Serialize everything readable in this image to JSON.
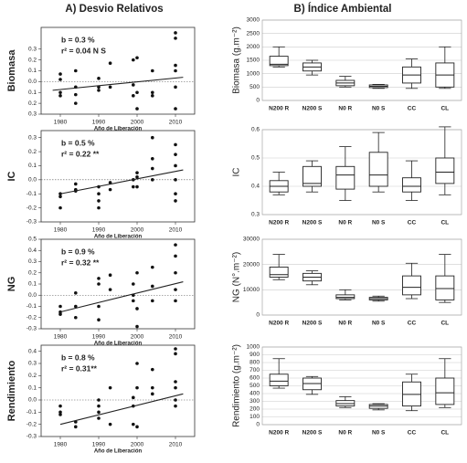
{
  "panel_titles": [
    "A)  Desvio Relativos",
    "B)  Índice Ambiental"
  ],
  "chart_data": [
    {
      "type": "scatter",
      "y_label": "Biomasa",
      "x_label": "Año de Liberación",
      "annotations": [
        "b  = 0.3 %",
        "r² =  0.04 N S"
      ],
      "xlim": [
        1975,
        2015
      ],
      "xticks": [
        1980,
        1990,
        2000,
        2010
      ],
      "ylim": [
        -0.3,
        0.5
      ],
      "yticks": [
        {
          "value": -0.3,
          "label": "0.3"
        },
        {
          "value": -0.2,
          "label": "0.2"
        },
        {
          "value": -0.1,
          "label": "0.1"
        },
        {
          "value": 0,
          "label": "0.0"
        },
        0.1,
        0.2,
        0.3
      ],
      "x": [
        1980,
        1980,
        1980,
        1980,
        1984,
        1984,
        1984,
        1984,
        1990,
        1990,
        1990,
        1993,
        1993,
        1999,
        1999,
        1999,
        2000,
        2000,
        2000,
        2004,
        2004,
        2004,
        2010,
        2010,
        2010,
        2010,
        2010,
        2010
      ],
      "values": [
        0.07,
        0.02,
        -0.1,
        -0.13,
        0.1,
        -0.05,
        -0.12,
        -0.2,
        0.03,
        -0.05,
        -0.08,
        0.17,
        -0.05,
        0.2,
        -0.03,
        -0.13,
        0.22,
        -0.1,
        -0.25,
        0.1,
        -0.1,
        -0.13,
        0.45,
        0.4,
        0.15,
        0.1,
        -0.05,
        -0.25
      ],
      "fit": {
        "x": [
          1978,
          2012
        ],
        "values": [
          -0.08,
          0.04
        ]
      }
    },
    {
      "type": "scatter",
      "y_label": "IC",
      "x_label": "Año de Liberación",
      "annotations": [
        "b = 0.5 %",
        "r² = 0.22 **"
      ],
      "xlim": [
        1975,
        2015
      ],
      "xticks": [
        1980,
        1990,
        2000,
        2010
      ],
      "ylim": [
        -0.3,
        0.35
      ],
      "yticks": [
        -0.3,
        -0.2,
        -0.1,
        {
          "value": 0,
          "label": "0.0"
        },
        0.1,
        0.2,
        0.3
      ],
      "x": [
        1980,
        1980,
        1980,
        1984,
        1984,
        1984,
        1990,
        1990,
        1990,
        1990,
        1993,
        1993,
        1999,
        1999,
        2000,
        2000,
        2000,
        2004,
        2004,
        2004,
        2004,
        2010,
        2010,
        2010,
        2010,
        2010,
        2010
      ],
      "values": [
        -0.1,
        -0.12,
        -0.2,
        -0.07,
        -0.08,
        -0.03,
        -0.05,
        -0.1,
        -0.15,
        -0.2,
        -0.07,
        -0.02,
        0,
        -0.05,
        0.02,
        0.05,
        -0.05,
        0.08,
        0.15,
        0.3,
        0,
        0.25,
        0.18,
        0.1,
        0,
        -0.1,
        -0.15
      ],
      "fit": {
        "x": [
          1980,
          2012
        ],
        "values": [
          -0.1,
          0.07
        ]
      }
    },
    {
      "type": "scatter",
      "y_label": "NG",
      "x_label": "Año de Liberación",
      "annotations": [
        "b = 0.9 %",
        "r² = 0.32 **"
      ],
      "xlim": [
        1975,
        2015
      ],
      "xticks": [
        1980,
        1990,
        2000,
        2010
      ],
      "ylim": [
        -0.3,
        0.5
      ],
      "yticks": [
        -0.3,
        -0.2,
        -0.1,
        {
          "value": 0,
          "label": "0.0"
        },
        0.1,
        0.2,
        0.3,
        0.4,
        0.5
      ],
      "x": [
        1980,
        1980,
        1980,
        1984,
        1984,
        1984,
        1990,
        1990,
        1990,
        1990,
        1993,
        1993,
        1999,
        1999,
        1999,
        2000,
        2000,
        2000,
        2004,
        2004,
        2004,
        2010,
        2010,
        2010,
        2010,
        2010
      ],
      "values": [
        -0.1,
        -0.15,
        -0.17,
        0.02,
        -0.1,
        -0.2,
        0.15,
        0.1,
        -0.1,
        -0.22,
        0.18,
        0.05,
        0.1,
        0,
        -0.05,
        0.2,
        -0.12,
        -0.28,
        0.25,
        0.08,
        -0.05,
        0.45,
        0.35,
        0.2,
        0.05,
        -0.05
      ],
      "fit": {
        "x": [
          1980,
          2012
        ],
        "values": [
          -0.15,
          0.12
        ]
      }
    },
    {
      "type": "scatter",
      "y_label": "Rendimiento",
      "x_label": "Año de Liberación",
      "annotations": [
        "b = 0.8 %",
        "r² = 0.31**"
      ],
      "xlim": [
        1975,
        2015
      ],
      "xticks": [
        1980,
        1990,
        2000,
        2010
      ],
      "ylim": [
        -0.3,
        0.45
      ],
      "yticks": [
        -0.3,
        -0.2,
        -0.1,
        {
          "value": 0,
          "label": "0.0"
        },
        0.1,
        0.2,
        0.3,
        0.4
      ],
      "x": [
        1980,
        1980,
        1980,
        1984,
        1984,
        1990,
        1990,
        1990,
        1990,
        1993,
        1993,
        1999,
        1999,
        1999,
        2000,
        2000,
        2000,
        2004,
        2004,
        2004,
        2010,
        2010,
        2010,
        2010,
        2010,
        2010
      ],
      "values": [
        -0.05,
        -0.1,
        -0.12,
        -0.18,
        -0.22,
        0,
        -0.05,
        -0.1,
        -0.15,
        -0.2,
        0.1,
        0.02,
        -0.05,
        -0.2,
        0.3,
        0.1,
        -0.22,
        0.25,
        0.1,
        0.05,
        0.42,
        0.38,
        0.15,
        0.1,
        0,
        -0.05
      ],
      "fit": {
        "x": [
          1980,
          2012
        ],
        "values": [
          -0.2,
          0.05
        ]
      }
    },
    {
      "type": "box",
      "y_label": "Biomasa (g.m⁻²)",
      "categories": [
        "N200 R",
        "N200 S",
        "N0 R",
        "N0 S",
        "CC",
        "CL"
      ],
      "ylim": [
        0,
        3000
      ],
      "yticks": [
        0,
        500,
        1000,
        1500,
        2000,
        2500,
        3000
      ],
      "grid": true,
      "min": [
        1250,
        950,
        500,
        450,
        450,
        450
      ],
      "q1": [
        1300,
        1100,
        550,
        480,
        650,
        500
      ],
      "median": [
        1350,
        1250,
        650,
        530,
        950,
        950
      ],
      "q3": [
        1650,
        1400,
        750,
        580,
        1250,
        1400
      ],
      "max": [
        2000,
        1500,
        900,
        600,
        1550,
        2000
      ]
    },
    {
      "type": "box",
      "y_label": "IC",
      "categories": [
        "N200 R",
        "N200 S",
        "N0 R",
        "N0 S",
        "CC",
        "CL"
      ],
      "ylim": [
        0.3,
        0.6
      ],
      "yticks": [
        0.3,
        0.4,
        0.5,
        0.6
      ],
      "grid": true,
      "min": [
        0.37,
        0.38,
        0.35,
        0.38,
        0.35,
        0.37
      ],
      "q1": [
        0.38,
        0.4,
        0.39,
        0.4,
        0.38,
        0.41
      ],
      "median": [
        0.4,
        0.41,
        0.44,
        0.44,
        0.4,
        0.45
      ],
      "q3": [
        0.42,
        0.47,
        0.47,
        0.52,
        0.43,
        0.5
      ],
      "max": [
        0.45,
        0.49,
        0.54,
        0.59,
        0.49,
        0.61
      ]
    },
    {
      "type": "box",
      "y_label": "NG (N°.m⁻²)",
      "categories": [
        "N200 R",
        "N200 S",
        "N0 R",
        "N0 S",
        "CC",
        "CL"
      ],
      "ylim": [
        0,
        30000
      ],
      "yticks": [
        0,
        10000,
        20000,
        30000
      ],
      "grid": true,
      "min": [
        14000,
        12000,
        6000,
        5500,
        6500,
        5000
      ],
      "q1": [
        15000,
        13500,
        6500,
        6000,
        8000,
        6000
      ],
      "median": [
        16000,
        15000,
        7000,
        6500,
        11000,
        10500
      ],
      "q3": [
        19000,
        16500,
        8000,
        7000,
        15500,
        15500
      ],
      "max": [
        24000,
        17500,
        10000,
        7500,
        20500,
        24000
      ]
    },
    {
      "type": "box",
      "y_label": "Rendimiento (g.m⁻²)",
      "categories": [
        "N200 R",
        "N200 S",
        "N0 R",
        "N0 S",
        "CC",
        "CL"
      ],
      "ylim": [
        0,
        1000
      ],
      "yticks": [
        0,
        100,
        200,
        300,
        400,
        500,
        600,
        700,
        800,
        900,
        1000
      ],
      "grid": true,
      "min": [
        470,
        390,
        220,
        190,
        180,
        220
      ],
      "q1": [
        500,
        450,
        240,
        210,
        240,
        260
      ],
      "median": [
        560,
        530,
        270,
        240,
        390,
        410
      ],
      "q3": [
        650,
        600,
        310,
        260,
        550,
        600
      ],
      "max": [
        850,
        620,
        360,
        270,
        650,
        850
      ]
    }
  ]
}
